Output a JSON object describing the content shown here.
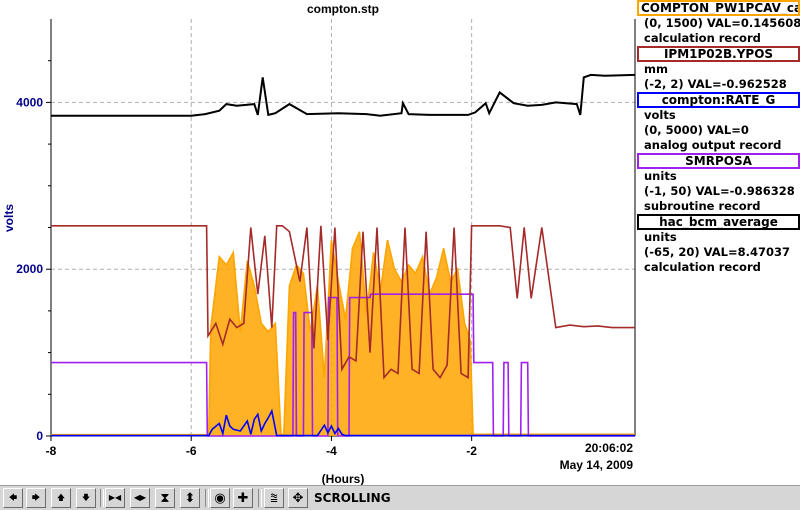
{
  "title": "compton.stp",
  "chart_data": {
    "type": "line",
    "title": "compton.stp",
    "xlabel": "(Hours)",
    "ylabel": "volts",
    "xlim": [
      -8,
      0.33
    ],
    "ylim": [
      0,
      5000
    ],
    "x_ticks": [
      "-8",
      "-6",
      "-4",
      "-2"
    ],
    "y_ticks": [
      "0",
      "2000",
      "4000"
    ],
    "time_label": "20:06:02",
    "date_label": "May 14, 2009",
    "grid": true,
    "legend_position": "right",
    "series": [
      {
        "name": "COMPTON_PW1PCAV_ca",
        "color": "#ffa500",
        "range": "(0, 1500)",
        "val_text": "VAL=0.145608",
        "record_type": "calculation record",
        "x": [
          -8,
          -5.75,
          -5.72,
          -5.6,
          -5.5,
          -5.4,
          -5.3,
          -5.2,
          -5.1,
          -5.0,
          -4.9,
          -4.8,
          -4.72,
          -4.68,
          -4.6,
          -4.5,
          -4.4,
          -4.3,
          -4.2,
          -4.1,
          -4.0,
          -3.9,
          -3.8,
          -3.7,
          -3.6,
          -3.5,
          -3.4,
          -3.3,
          -3.2,
          -3.1,
          -3.0,
          -2.9,
          -2.8,
          -2.7,
          -2.6,
          -2.5,
          -2.4,
          -2.3,
          -2.2,
          -2.1,
          -2.02,
          -1.98,
          0.33
        ],
        "y": [
          15,
          15,
          1300,
          2150,
          2050,
          2200,
          1250,
          2100,
          1800,
          1350,
          1250,
          1350,
          20,
          20,
          1800,
          2050,
          1950,
          1250,
          1800,
          700,
          2350,
          1850,
          1400,
          2250,
          2450,
          1450,
          2200,
          1750,
          2350,
          2000,
          1850,
          2050,
          1950,
          2150,
          1700,
          1900,
          2250,
          1850,
          2000,
          1350,
          1150,
          20,
          20
        ]
      },
      {
        "name": "IPM1P02B.YPOS",
        "color": "#a52a2a",
        "range": "(-2, 2)",
        "unit": "mm",
        "val_text": "VAL=-0.962528",
        "record_type": "",
        "x": [
          -8,
          -5.78,
          -5.76,
          -5.65,
          -5.55,
          -5.45,
          -5.35,
          -5.25,
          -5.15,
          -5.05,
          -4.95,
          -4.85,
          -4.78,
          -4.7,
          -4.6,
          -4.45,
          -4.35,
          -4.25,
          -4.15,
          -4.05,
          -3.95,
          -3.85,
          -3.75,
          -3.65,
          -3.55,
          -3.45,
          -3.35,
          -3.25,
          -3.15,
          -3.05,
          -2.95,
          -2.85,
          -2.75,
          -2.65,
          -2.55,
          -2.45,
          -2.35,
          -2.25,
          -2.15,
          -2.05,
          -2.0,
          -1.9,
          -1.8,
          -1.7,
          -1.6,
          -1.45,
          -1.35,
          -1.25,
          -1.15,
          -1.0,
          -0.8,
          -0.6,
          -0.4,
          -0.2,
          0.0,
          0.33
        ],
        "y": [
          2520,
          2520,
          1200,
          1350,
          1100,
          1400,
          1300,
          1350,
          2500,
          1700,
          2400,
          1300,
          2520,
          2520,
          2450,
          1850,
          2500,
          1050,
          2520,
          1150,
          2500,
          800,
          950,
          900,
          2450,
          1000,
          2500,
          700,
          800,
          750,
          2500,
          800,
          750,
          2450,
          800,
          700,
          850,
          2500,
          750,
          700,
          2520,
          2520,
          2520,
          2520,
          2520,
          2500,
          1650,
          2500,
          1650,
          2500,
          1300,
          1330,
          1310,
          1320,
          1300,
          1300
        ]
      },
      {
        "name": "compton:RATE_G",
        "color": "#0000ff",
        "range": "(0, 5000)",
        "unit": "volts",
        "val_text": "VAL=0",
        "record_type": "analog output record",
        "x": [
          -8,
          -5.75,
          -5.7,
          -5.6,
          -5.55,
          -5.5,
          -5.45,
          -5.4,
          -5.3,
          -5.2,
          -5.15,
          -5.1,
          -5.05,
          -5.0,
          -4.95,
          -4.9,
          -4.85,
          -4.78,
          -4.7,
          -4.2,
          -4.1,
          -4.05,
          -4.0,
          -3.95,
          -3.9,
          -3.85,
          -3.8,
          -3.6,
          0.33
        ],
        "y": [
          5,
          5,
          80,
          150,
          30,
          250,
          120,
          80,
          60,
          180,
          20,
          200,
          260,
          60,
          150,
          220,
          300,
          5,
          5,
          5,
          130,
          40,
          120,
          30,
          90,
          20,
          5,
          5,
          5
        ]
      },
      {
        "name": "SMRPOSA",
        "color": "#a020f0",
        "range": "(-1, 50)",
        "unit": "units",
        "val_text": "VAL=-0.986328",
        "record_type": "subroutine record",
        "x": [
          -8,
          -5.78,
          -5.77,
          -4.55,
          -4.54,
          -4.51,
          -4.5,
          -4.4,
          -4.39,
          -4.28,
          -4.27,
          -4.05,
          -4.04,
          -3.92,
          -3.91,
          -3.75,
          -3.74,
          -3.45,
          -3.44,
          -1.98,
          -1.97,
          -1.7,
          -1.69,
          -1.55,
          -1.54,
          -1.48,
          -1.47,
          -1.3,
          -1.29,
          -1.2,
          -1.19,
          0.33
        ],
        "y": [
          880,
          880,
          0,
          0,
          1480,
          1480,
          0,
          0,
          1480,
          1480,
          0,
          0,
          1660,
          1660,
          0,
          0,
          1660,
          1660,
          1700,
          1700,
          880,
          880,
          0,
          0,
          880,
          880,
          0,
          0,
          880,
          880,
          0,
          0
        ]
      },
      {
        "name": "hac_bcm_average",
        "color": "#000000",
        "range": "(-65, 20)",
        "unit": "units",
        "val_text": "VAL=8.47037",
        "record_type": "calculation record",
        "x": [
          -8,
          -6.0,
          -5.8,
          -5.6,
          -5.5,
          -5.35,
          -5.1,
          -5.05,
          -4.98,
          -4.9,
          -4.8,
          -4.6,
          -4.35,
          -3.9,
          -3.5,
          -3.3,
          -3.0,
          -2.98,
          -2.9,
          -2.6,
          -2.05,
          -1.95,
          -1.8,
          -1.75,
          -1.6,
          -1.4,
          -1.2,
          -1.0,
          -0.8,
          -0.5,
          -0.45,
          -0.4,
          -0.3,
          -0.1,
          0.33
        ],
        "y": [
          3840,
          3840,
          3860,
          3900,
          3980,
          3960,
          3980,
          3850,
          4300,
          3850,
          3870,
          3980,
          3860,
          3870,
          3860,
          3840,
          3870,
          3990,
          3860,
          3850,
          3850,
          3880,
          3990,
          3870,
          4120,
          3990,
          3960,
          3970,
          4000,
          3980,
          3850,
          4300,
          4330,
          4320,
          4330
        ]
      }
    ]
  },
  "toolbar": {
    "status": "SCROLLING",
    "buttons": [
      {
        "name": "scroll-left-button",
        "glyph": "🡄"
      },
      {
        "name": "scroll-right-button",
        "glyph": "🡆"
      },
      {
        "name": "scroll-up-button",
        "glyph": "🡅"
      },
      {
        "name": "scroll-down-button",
        "glyph": "🡇"
      },
      {
        "name": "zoom-in-x-button",
        "glyph": "▶◀"
      },
      {
        "name": "zoom-out-x-button",
        "glyph": "◀▶"
      },
      {
        "name": "zoom-in-y-button",
        "glyph": "⧗"
      },
      {
        "name": "zoom-out-y-button",
        "glyph": "⬍"
      },
      {
        "name": "center-button",
        "glyph": "◉"
      },
      {
        "name": "add-button",
        "glyph": "✚"
      },
      {
        "name": "autoscale-button",
        "glyph": "⩰"
      },
      {
        "name": "pan-button",
        "glyph": "✥"
      }
    ]
  }
}
